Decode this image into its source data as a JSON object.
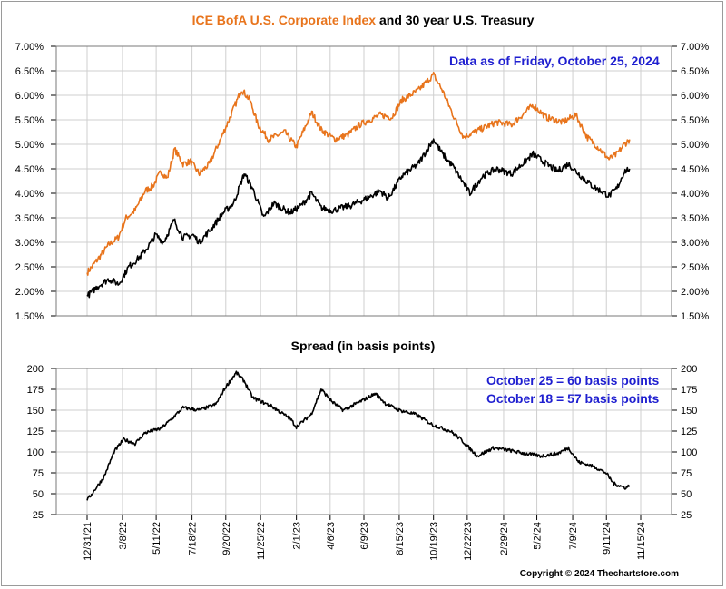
{
  "title": {
    "part1": "ICE BofA U.S. Corporate Index",
    "part2": "and 30 year U.S. Treasury"
  },
  "note_top": "Data as of Friday, October 25, 2024",
  "subtitle": "Spread (in basis points)",
  "note_bottom": {
    "line1": "October 25 = 60 basis points",
    "line2": "October 18 = 57 basis points"
  },
  "copyright": "Copyright © 2024 Thechartstore.com",
  "colors": {
    "corporate": "#e8741c",
    "treasury": "#000000",
    "spread": "#000000",
    "note": "#1f1fd0",
    "grid": "#cfcfcf"
  },
  "chart_data": [
    {
      "type": "line",
      "title": "ICE BofA U.S. Corporate Index and 30 year U.S. Treasury",
      "ylim": [
        1.5,
        7.0
      ],
      "yticks": [
        "1.50%",
        "2.00%",
        "2.50%",
        "3.00%",
        "3.50%",
        "4.00%",
        "4.50%",
        "5.00%",
        "5.50%",
        "6.00%",
        "6.50%",
        "7.00%"
      ],
      "grid": true,
      "series": [
        {
          "name": "ICE BofA U.S. Corporate Index",
          "color": "#e8741c",
          "points": [
            [
              "2021-12-31",
              2.38
            ],
            [
              "2022-01-20",
              2.65
            ],
            [
              "2022-02-10",
              2.95
            ],
            [
              "2022-02-28",
              3.1
            ],
            [
              "2022-03-15",
              3.5
            ],
            [
              "2022-04-01",
              3.65
            ],
            [
              "2022-04-20",
              4.05
            ],
            [
              "2022-05-05",
              4.15
            ],
            [
              "2022-05-20",
              4.45
            ],
            [
              "2022-06-01",
              4.3
            ],
            [
              "2022-06-15",
              4.9
            ],
            [
              "2022-07-01",
              4.6
            ],
            [
              "2022-07-15",
              4.65
            ],
            [
              "2022-08-01",
              4.4
            ],
            [
              "2022-08-20",
              4.6
            ],
            [
              "2022-09-10",
              5.1
            ],
            [
              "2022-09-30",
              5.6
            ],
            [
              "2022-10-20",
              6.12
            ],
            [
              "2022-11-05",
              5.9
            ],
            [
              "2022-11-20",
              5.4
            ],
            [
              "2022-12-10",
              5.1
            ],
            [
              "2023-01-10",
              5.25
            ],
            [
              "2023-02-01",
              4.95
            ],
            [
              "2023-03-02",
              5.65
            ],
            [
              "2023-03-20",
              5.3
            ],
            [
              "2023-04-15",
              5.1
            ],
            [
              "2023-05-10",
              5.2
            ],
            [
              "2023-06-01",
              5.4
            ],
            [
              "2023-07-10",
              5.6
            ],
            [
              "2023-08-01",
              5.55
            ],
            [
              "2023-08-20",
              5.9
            ],
            [
              "2023-09-20",
              6.1
            ],
            [
              "2023-10-19",
              6.42
            ],
            [
              "2023-11-05",
              6.1
            ],
            [
              "2023-11-25",
              5.6
            ],
            [
              "2023-12-15",
              5.15
            ],
            [
              "2024-01-15",
              5.3
            ],
            [
              "2024-02-15",
              5.45
            ],
            [
              "2024-03-15",
              5.4
            ],
            [
              "2024-04-25",
              5.8
            ],
            [
              "2024-05-20",
              5.55
            ],
            [
              "2024-06-20",
              5.45
            ],
            [
              "2024-07-15",
              5.6
            ],
            [
              "2024-08-05",
              5.15
            ],
            [
              "2024-08-25",
              4.95
            ],
            [
              "2024-09-16",
              4.7
            ],
            [
              "2024-10-01",
              4.8
            ],
            [
              "2024-10-15",
              5.0
            ],
            [
              "2024-10-25",
              5.1
            ]
          ]
        },
        {
          "name": "30 year U.S. Treasury",
          "color": "#000000",
          "points": [
            [
              "2021-12-31",
              1.9
            ],
            [
              "2022-01-20",
              2.1
            ],
            [
              "2022-02-10",
              2.25
            ],
            [
              "2022-03-01",
              2.15
            ],
            [
              "2022-03-20",
              2.5
            ],
            [
              "2022-04-10",
              2.7
            ],
            [
              "2022-04-25",
              2.9
            ],
            [
              "2022-05-10",
              3.15
            ],
            [
              "2022-05-25",
              3.0
            ],
            [
              "2022-06-14",
              3.45
            ],
            [
              "2022-07-01",
              3.1
            ],
            [
              "2022-07-20",
              3.15
            ],
            [
              "2022-08-01",
              3.0
            ],
            [
              "2022-08-25",
              3.3
            ],
            [
              "2022-09-15",
              3.6
            ],
            [
              "2022-10-05",
              3.8
            ],
            [
              "2022-10-25",
              4.4
            ],
            [
              "2022-11-10",
              4.1
            ],
            [
              "2022-12-01",
              3.5
            ],
            [
              "2022-12-20",
              3.8
            ],
            [
              "2023-01-20",
              3.6
            ],
            [
              "2023-02-10",
              3.75
            ],
            [
              "2023-03-02",
              4.0
            ],
            [
              "2023-03-20",
              3.7
            ],
            [
              "2023-04-10",
              3.65
            ],
            [
              "2023-05-15",
              3.75
            ],
            [
              "2023-06-15",
              3.9
            ],
            [
              "2023-07-10",
              4.05
            ],
            [
              "2023-07-25",
              3.9
            ],
            [
              "2023-08-20",
              4.35
            ],
            [
              "2023-09-20",
              4.6
            ],
            [
              "2023-10-19",
              5.1
            ],
            [
              "2023-11-05",
              4.8
            ],
            [
              "2023-11-25",
              4.55
            ],
            [
              "2023-12-27",
              4.0
            ],
            [
              "2024-01-20",
              4.35
            ],
            [
              "2024-02-15",
              4.5
            ],
            [
              "2024-03-15",
              4.4
            ],
            [
              "2024-04-25",
              4.8
            ],
            [
              "2024-05-20",
              4.6
            ],
            [
              "2024-06-10",
              4.45
            ],
            [
              "2024-07-01",
              4.6
            ],
            [
              "2024-07-25",
              4.35
            ],
            [
              "2024-08-15",
              4.15
            ],
            [
              "2024-09-16",
              3.95
            ],
            [
              "2024-10-01",
              4.1
            ],
            [
              "2024-10-15",
              4.45
            ],
            [
              "2024-10-25",
              4.5
            ]
          ]
        }
      ]
    },
    {
      "type": "line",
      "title": "Spread (in basis points)",
      "ylim": [
        25,
        200
      ],
      "yticks": [
        "25",
        "50",
        "75",
        "100",
        "125",
        "150",
        "175",
        "200"
      ],
      "grid": true,
      "series": [
        {
          "color": "#000000",
          "points": [
            [
              "2021-12-31",
              42
            ],
            [
              "2022-02-01",
              70
            ],
            [
              "2022-02-20",
              100
            ],
            [
              "2022-03-10",
              115
            ],
            [
              "2022-04-01",
              110
            ],
            [
              "2022-04-20",
              123
            ],
            [
              "2022-05-20",
              128
            ],
            [
              "2022-06-10",
              140
            ],
            [
              "2022-07-01",
              153
            ],
            [
              "2022-08-01",
              150
            ],
            [
              "2022-09-01",
              157
            ],
            [
              "2022-09-20",
              178
            ],
            [
              "2022-10-10",
              195
            ],
            [
              "2022-10-25",
              185
            ],
            [
              "2022-11-10",
              165
            ],
            [
              "2022-12-15",
              155
            ],
            [
              "2023-01-20",
              140
            ],
            [
              "2023-02-01",
              130
            ],
            [
              "2023-03-01",
              145
            ],
            [
              "2023-03-20",
              175
            ],
            [
              "2023-04-10",
              160
            ],
            [
              "2023-05-01",
              150
            ],
            [
              "2023-06-01",
              160
            ],
            [
              "2023-07-01",
              170
            ],
            [
              "2023-07-20",
              158
            ],
            [
              "2023-08-15",
              150
            ],
            [
              "2023-09-15",
              145
            ],
            [
              "2023-10-19",
              132
            ],
            [
              "2023-11-20",
              125
            ],
            [
              "2023-12-10",
              115
            ],
            [
              "2024-01-10",
              95
            ],
            [
              "2024-02-10",
              105
            ],
            [
              "2024-03-10",
              102
            ],
            [
              "2024-04-10",
              98
            ],
            [
              "2024-05-10",
              95
            ],
            [
              "2024-06-10",
              98
            ],
            [
              "2024-07-01",
              105
            ],
            [
              "2024-07-20",
              88
            ],
            [
              "2024-08-20",
              82
            ],
            [
              "2024-09-10",
              75
            ],
            [
              "2024-09-25",
              62
            ],
            [
              "2024-10-18",
              57
            ],
            [
              "2024-10-25",
              60
            ]
          ]
        }
      ]
    }
  ],
  "x_axis": {
    "tick_dates": [
      "2021-12-31",
      "2022-03-08",
      "2022-05-11",
      "2022-07-18",
      "2022-09-20",
      "2022-11-25",
      "2023-02-01",
      "2023-04-06",
      "2023-06-09",
      "2023-08-15",
      "2023-10-19",
      "2023-12-22",
      "2024-02-29",
      "2024-05-02",
      "2024-07-09",
      "2024-09-11",
      "2024-11-15"
    ],
    "tick_labels": [
      "12/31/21",
      "3/8/22",
      "5/11/22",
      "7/18/22",
      "9/20/22",
      "11/25/22",
      "2/1/23",
      "4/6/23",
      "6/9/23",
      "8/15/23",
      "10/19/23",
      "12/22/23",
      "2/29/24",
      "5/2/24",
      "7/9/24",
      "9/11/24",
      "11/15/24"
    ]
  }
}
